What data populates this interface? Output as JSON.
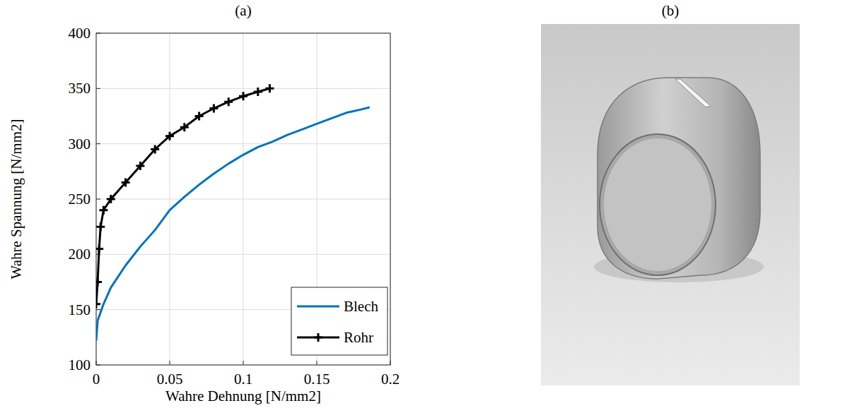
{
  "chart_data": {
    "type": "line",
    "title": "(a)",
    "x_label": "Wahre Dehnung [N/mm2]",
    "y_label": "Wahre Spannung [N/mm2]",
    "xlim": [
      0,
      0.2
    ],
    "xticks": [
      0,
      0.05,
      0.1,
      0.15,
      0.2
    ],
    "ylim": [
      100,
      400
    ],
    "yticks": [
      100,
      150,
      200,
      250,
      300,
      350,
      400
    ],
    "grid": true,
    "legend": "lower right",
    "series": [
      {
        "name": "Blech",
        "color": "#0072bd",
        "line_style": "solid",
        "marker": "none",
        "x": [
          0,
          0.001,
          0.005,
          0.01,
          0.02,
          0.03,
          0.04,
          0.05,
          0.06,
          0.07,
          0.08,
          0.09,
          0.1,
          0.11,
          0.12,
          0.13,
          0.14,
          0.15,
          0.16,
          0.17,
          0.18,
          0.186
        ],
        "values": [
          122,
          140,
          155,
          170,
          190,
          207,
          222,
          240,
          252,
          263,
          273,
          282,
          290,
          297,
          302,
          308,
          313,
          318,
          323,
          328,
          331,
          333
        ]
      },
      {
        "name": "Rohr",
        "color": "#000000",
        "line_style": "solid",
        "marker": "plus",
        "x": [
          0,
          0.001,
          0.002,
          0.003,
          0.005,
          0.01,
          0.02,
          0.03,
          0.04,
          0.05,
          0.06,
          0.07,
          0.08,
          0.09,
          0.1,
          0.11,
          0.118
        ],
        "values": [
          155,
          175,
          205,
          225,
          240,
          250,
          265,
          280,
          295,
          307,
          315,
          325,
          332,
          338,
          343,
          347,
          350
        ]
      }
    ]
  },
  "image_panel": {
    "title": "(b)"
  }
}
